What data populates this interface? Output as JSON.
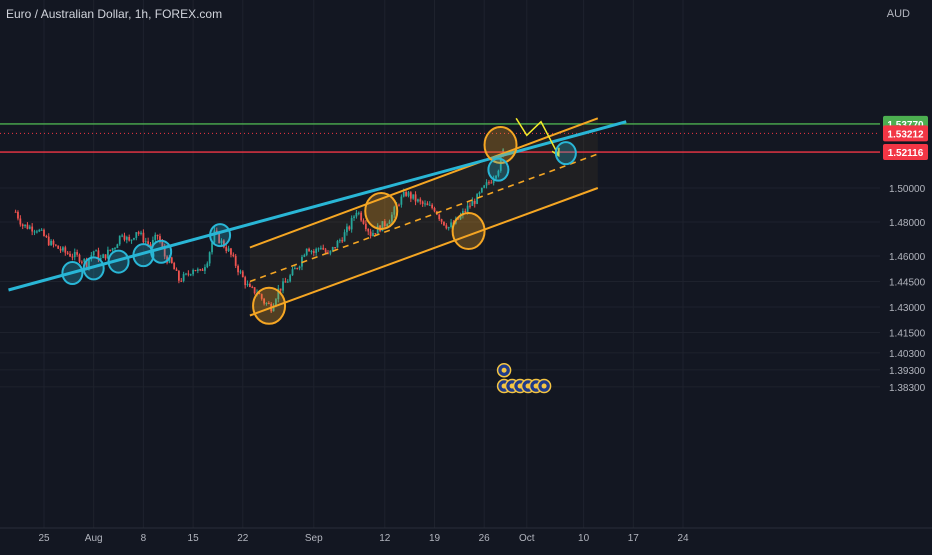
{
  "header": {
    "title": "Euro / Australian Dollar, 1h, FOREX.com",
    "currency": "AUD"
  },
  "colors": {
    "background": "#131722",
    "grid": "#1e222d",
    "up": "#26a69a",
    "down": "#ef5350",
    "channel": "#f5a623",
    "trendline": "#29b6d6",
    "projection": "#f4ea2a",
    "resistance": "#4caf50",
    "support": "#f23645",
    "current_price": "#f23645"
  },
  "chart_data": {
    "type": "candlestick",
    "symbol": "EURAUD",
    "timeframe": "1h",
    "xlabel": "",
    "ylabel": "",
    "ylim": [
      1.375,
      1.555
    ],
    "grid": true,
    "x_ticks": [
      "25",
      "Aug",
      "8",
      "15",
      "22",
      "Sep",
      "12",
      "19",
      "26",
      "Oct",
      "10",
      "17",
      "24"
    ],
    "y_ticks": [
      {
        "label": "1.50000",
        "value": 1.5
      },
      {
        "label": "1.48000",
        "value": 1.48
      },
      {
        "label": "1.46000",
        "value": 1.46
      },
      {
        "label": "1.44500",
        "value": 1.445
      },
      {
        "label": "1.43000",
        "value": 1.43
      },
      {
        "label": "1.41500",
        "value": 1.415
      },
      {
        "label": "1.40300",
        "value": 1.403
      },
      {
        "label": "1.39300",
        "value": 1.393
      },
      {
        "label": "1.38300",
        "value": 1.383
      }
    ],
    "price_path": [
      {
        "x": 21.0,
        "y": 1.486
      },
      {
        "x": 22.0,
        "y": 1.478
      },
      {
        "x": 24.0,
        "y": 1.476
      },
      {
        "x": 26.0,
        "y": 1.467
      },
      {
        "x": 28.0,
        "y": 1.462
      },
      {
        "x": 30.0,
        "y": 1.459
      },
      {
        "x": 31.0,
        "y": 1.456
      },
      {
        "x": 32.0,
        "y": 1.463
      },
      {
        "x": 33.0,
        "y": 1.458
      },
      {
        "x": 35.0,
        "y": 1.466
      },
      {
        "x": 36.0,
        "y": 1.474
      },
      {
        "x": 37.0,
        "y": 1.468
      },
      {
        "x": 38.0,
        "y": 1.475
      },
      {
        "x": 39.0,
        "y": 1.47
      },
      {
        "x": 40.0,
        "y": 1.466
      },
      {
        "x": 41.0,
        "y": 1.472
      },
      {
        "x": 42.0,
        "y": 1.46
      },
      {
        "x": 43.0,
        "y": 1.455
      },
      {
        "x": 44.0,
        "y": 1.446
      },
      {
        "x": 45.0,
        "y": 1.448
      },
      {
        "x": 46.0,
        "y": 1.453
      },
      {
        "x": 47.0,
        "y": 1.45
      },
      {
        "x": 48.0,
        "y": 1.458
      },
      {
        "x": 49.0,
        "y": 1.473
      },
      {
        "x": 50.0,
        "y": 1.468
      },
      {
        "x": 51.0,
        "y": 1.463
      },
      {
        "x": 52.0,
        "y": 1.455
      },
      {
        "x": 53.0,
        "y": 1.447
      },
      {
        "x": 54.0,
        "y": 1.44
      },
      {
        "x": 55.0,
        "y": 1.439
      },
      {
        "x": 56.0,
        "y": 1.433
      },
      {
        "x": 57.0,
        "y": 1.43
      },
      {
        "x": 58.0,
        "y": 1.44
      },
      {
        "x": 59.0,
        "y": 1.444
      },
      {
        "x": 60.0,
        "y": 1.45
      },
      {
        "x": 61.0,
        "y": 1.456
      },
      {
        "x": 62.0,
        "y": 1.466
      },
      {
        "x": 63.0,
        "y": 1.462
      },
      {
        "x": 64.0,
        "y": 1.466
      },
      {
        "x": 65.0,
        "y": 1.46
      },
      {
        "x": 66.0,
        "y": 1.466
      },
      {
        "x": 67.0,
        "y": 1.471
      },
      {
        "x": 68.0,
        "y": 1.477
      },
      {
        "x": 69.0,
        "y": 1.487
      },
      {
        "x": 70.0,
        "y": 1.481
      },
      {
        "x": 71.0,
        "y": 1.473
      },
      {
        "x": 72.0,
        "y": 1.476
      },
      {
        "x": 73.0,
        "y": 1.479
      },
      {
        "x": 74.0,
        "y": 1.484
      },
      {
        "x": 75.0,
        "y": 1.492
      },
      {
        "x": 76.0,
        "y": 1.497
      },
      {
        "x": 77.0,
        "y": 1.494
      },
      {
        "x": 78.0,
        "y": 1.491
      },
      {
        "x": 79.0,
        "y": 1.489
      },
      {
        "x": 80.0,
        "y": 1.488
      },
      {
        "x": 81.0,
        "y": 1.481
      },
      {
        "x": 82.0,
        "y": 1.477
      },
      {
        "x": 83.0,
        "y": 1.48
      },
      {
        "x": 84.0,
        "y": 1.485
      },
      {
        "x": 85.0,
        "y": 1.49
      },
      {
        "x": 86.0,
        "y": 1.494
      },
      {
        "x": 87.0,
        "y": 1.5
      },
      {
        "x": 88.0,
        "y": 1.505
      },
      {
        "x": 89.0,
        "y": 1.512
      },
      {
        "x": 90.0,
        "y": 1.526
      }
    ],
    "horizontal_levels": [
      {
        "label": "1.53770",
        "value": 1.5377,
        "style": "solid",
        "color": "#4caf50"
      },
      {
        "label": "1.53212",
        "value": 1.53212,
        "style": "dotted",
        "color": "#f23645"
      },
      {
        "label": "1.52116",
        "value": 1.52116,
        "style": "solid",
        "color": "#f23645"
      }
    ],
    "current_price": 1.53212,
    "trendline": {
      "points": [
        {
          "x": 20.0,
          "y": 1.44
        },
        {
          "x": 107.0,
          "y": 1.539
        }
      ]
    },
    "channel": {
      "upper": [
        {
          "x": 54.0,
          "y": 1.465
        },
        {
          "x": 103.0,
          "y": 1.541
        }
      ],
      "lower": [
        {
          "x": 54.0,
          "y": 1.425
        },
        {
          "x": 103.0,
          "y": 1.5
        }
      ],
      "middle": [
        {
          "x": 54.0,
          "y": 1.445
        },
        {
          "x": 103.0,
          "y": 1.52
        }
      ]
    },
    "projection": [
      {
        "x": 91.5,
        "y": 1.541
      },
      {
        "x": 93.0,
        "y": 1.531
      },
      {
        "x": 95.0,
        "y": 1.539
      },
      {
        "x": 97.5,
        "y": 1.519
      }
    ],
    "touch_points": [
      {
        "x": 29.0,
        "y": 1.45,
        "color": "#29b6d6"
      },
      {
        "x": 32.0,
        "y": 1.4527,
        "color": "#29b6d6"
      },
      {
        "x": 35.5,
        "y": 1.4567,
        "color": "#29b6d6"
      },
      {
        "x": 39.0,
        "y": 1.4605,
        "color": "#29b6d6"
      },
      {
        "x": 41.5,
        "y": 1.4625,
        "color": "#29b6d6"
      },
      {
        "x": 49.8,
        "y": 1.4723,
        "color": "#29b6d6"
      },
      {
        "x": 56.7,
        "y": 1.4307,
        "color": "#f5a623"
      },
      {
        "x": 72.5,
        "y": 1.4865,
        "color": "#f5a623"
      },
      {
        "x": 84.8,
        "y": 1.4747,
        "color": "#f5a623"
      },
      {
        "x": 89.3,
        "y": 1.5253,
        "color": "#f5a623"
      },
      {
        "x": 89.0,
        "y": 1.5108,
        "color": "#29b6d6"
      },
      {
        "x": 98.5,
        "y": 1.5205,
        "color": "#29b6d6"
      }
    ],
    "event_markers": {
      "x": 89.8,
      "rows": [
        {
          "y": 1.3928,
          "count": 1
        },
        {
          "y": 1.3835,
          "count": 6
        }
      ]
    }
  }
}
